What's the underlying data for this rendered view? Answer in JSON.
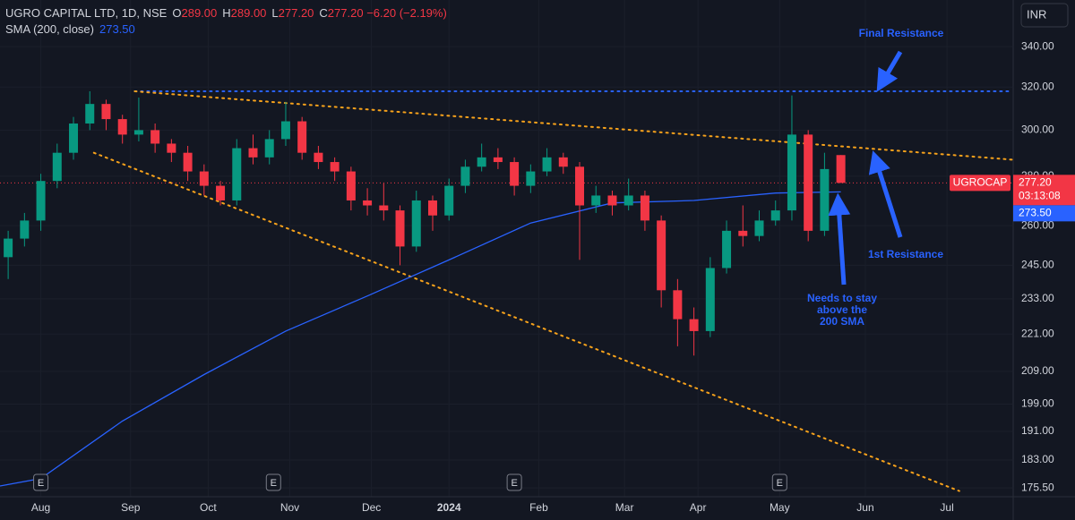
{
  "chart_data": {
    "type": "candlestick",
    "symbol": "UGRO CAPITAL LTD, 1D, NSE",
    "ohlc_legend": [
      {
        "k": "O",
        "v": "289.00"
      },
      {
        "k": "H",
        "v": "289.00"
      },
      {
        "k": "L",
        "v": "277.20"
      },
      {
        "k": "C",
        "v": "277.20"
      }
    ],
    "change": "−6.20 (−2.19%)",
    "sma_name": "SMA (200, close)",
    "currency": "INR",
    "log_y": true,
    "grid": true,
    "up_color": "#089981",
    "down_color": "#f23645",
    "ylim": [
      173.2,
      364.6
    ],
    "yticks": [
      {
        "value": 340,
        "label": "340.00"
      },
      {
        "value": 320,
        "label": "320.00"
      },
      {
        "value": 300,
        "label": "300.00"
      },
      {
        "value": 280,
        "label": "280.00"
      },
      {
        "value": 260,
        "label": "260.00"
      },
      {
        "value": 245,
        "label": "245.00"
      },
      {
        "value": 233,
        "label": "233.00"
      },
      {
        "value": 221,
        "label": "221.00"
      },
      {
        "value": 209,
        "label": "209.00"
      },
      {
        "value": 199,
        "label": "199.00"
      },
      {
        "value": 191,
        "label": "191.00"
      },
      {
        "value": 183,
        "label": "183.00"
      },
      {
        "value": 175.5,
        "label": "175.50"
      }
    ],
    "xlim": [
      -10,
      238
    ],
    "xticks": [
      {
        "value": 0,
        "label": "Aug"
      },
      {
        "value": 22,
        "label": "Sep"
      },
      {
        "value": 41,
        "label": "Oct"
      },
      {
        "value": 61,
        "label": "Nov"
      },
      {
        "value": 81,
        "label": "Dec"
      },
      {
        "value": 100,
        "label": "2024"
      },
      {
        "value": 122,
        "label": "Feb"
      },
      {
        "value": 143,
        "label": "Mar"
      },
      {
        "value": 161,
        "label": "Apr"
      },
      {
        "value": 181,
        "label": "May"
      },
      {
        "value": 202,
        "label": "Jun"
      },
      {
        "value": 222,
        "label": "Jul"
      }
    ],
    "candles": {
      "x": [
        -8,
        -4,
        0,
        4,
        8,
        12,
        16,
        20,
        24,
        28,
        32,
        36,
        40,
        44,
        48,
        52,
        56,
        60,
        64,
        68,
        72,
        76,
        80,
        84,
        88,
        92,
        96,
        100,
        104,
        108,
        112,
        116,
        120,
        124,
        128,
        132,
        136,
        140,
        144,
        148,
        152,
        156,
        160,
        164,
        168,
        172,
        176,
        180,
        184,
        188,
        192,
        196
      ],
      "open": [
        248,
        255,
        262,
        278,
        290,
        303,
        312,
        305,
        298,
        300,
        294,
        290,
        282,
        276,
        270,
        292,
        288,
        296,
        304,
        290,
        286,
        282,
        270,
        268,
        266,
        252,
        270,
        264,
        276,
        284,
        288,
        286,
        276,
        282,
        288,
        284,
        268,
        272,
        268,
        272,
        262,
        236,
        226,
        222,
        244,
        258,
        256,
        262,
        266,
        298,
        258,
        289
      ],
      "high": [
        258,
        265,
        281,
        294,
        306,
        318,
        314,
        307,
        315,
        303,
        296,
        293,
        285,
        278,
        296,
        298,
        300,
        313,
        306,
        293,
        288,
        284,
        275,
        277,
        268,
        274,
        272,
        279,
        287,
        294,
        292,
        288,
        285,
        292,
        290,
        286,
        276,
        274,
        279,
        274,
        264,
        240,
        230,
        248,
        262,
        268,
        266,
        270,
        316,
        300,
        290,
        289
      ],
      "low": [
        240,
        252,
        258,
        275,
        287,
        300,
        300,
        294,
        295,
        290,
        286,
        278,
        272,
        268,
        268,
        285,
        285,
        293,
        287,
        283,
        278,
        266,
        264,
        262,
        245,
        250,
        258,
        262,
        273,
        282,
        283,
        272,
        273,
        280,
        281,
        247,
        265,
        264,
        266,
        258,
        230,
        217,
        214,
        220,
        242,
        252,
        254,
        260,
        262,
        254,
        256,
        277.2
      ],
      "close": [
        255,
        262,
        278,
        290,
        303,
        312,
        305,
        298,
        300,
        294,
        290,
        282,
        276,
        270,
        292,
        288,
        296,
        304,
        290,
        286,
        282,
        270,
        268,
        266,
        252,
        270,
        264,
        276,
        284,
        288,
        286,
        276,
        282,
        288,
        284,
        268,
        272,
        268,
        272,
        262,
        236,
        226,
        222,
        244,
        258,
        256,
        262,
        266,
        298,
        258,
        283,
        277.2
      ]
    },
    "sma": {
      "color": "#2962ff",
      "x": [
        -10,
        0,
        20,
        40,
        60,
        80,
        100,
        120,
        140,
        160,
        180,
        196
      ],
      "values": [
        176,
        178,
        194,
        208,
        222,
        234,
        247,
        261,
        269,
        270,
        273,
        273.5
      ]
    },
    "lines": [
      {
        "color": "#2962ff",
        "x": [
          23,
          238
        ],
        "values": [
          318,
          318
        ]
      },
      {
        "color": "#f7a21b",
        "x": [
          23,
          238
        ],
        "values": [
          318,
          287
        ]
      },
      {
        "color": "#f7a21b",
        "x": [
          13,
          225
        ],
        "values": [
          290,
          174.7
        ]
      }
    ],
    "last_price": {
      "name": "UGROCAP",
      "value": 277.2,
      "label": "277.20",
      "countdown": "03:13:08"
    },
    "sma_price": {
      "value": 273.5,
      "label": "273.50"
    },
    "earnings": {
      "label": "E",
      "x": [
        0,
        57,
        116,
        181
      ]
    },
    "annotations": [
      "Final Resistance",
      "1st Resistance",
      "Needs to stay",
      "above the",
      "200 SMA"
    ]
  }
}
